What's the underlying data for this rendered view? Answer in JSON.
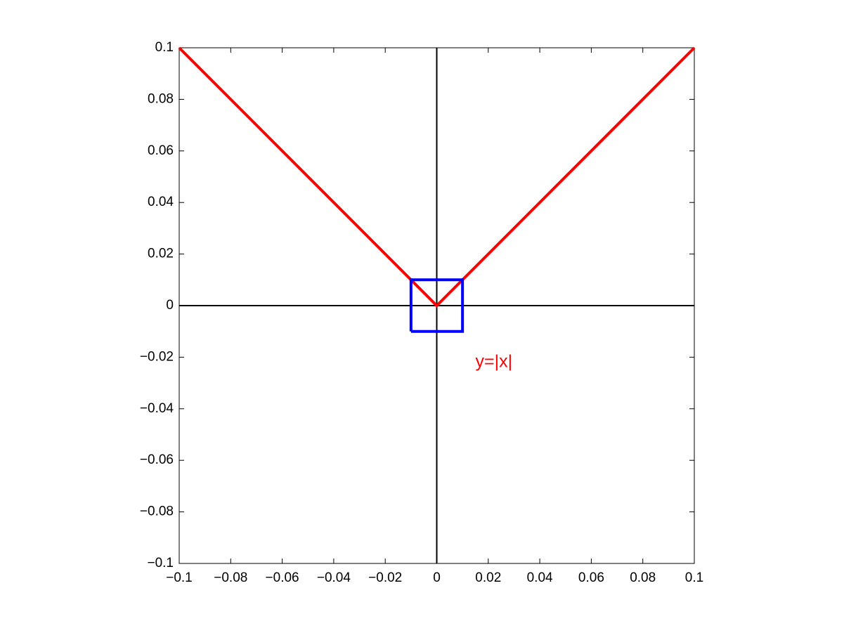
{
  "chart_data": {
    "type": "line",
    "series": [
      {
        "color": "#ff0000",
        "x": [
          -0.1,
          0,
          0.1
        ],
        "values": [
          0.1,
          0,
          0.1
        ]
      },
      {
        "color": "#0000ff",
        "x": [
          -0.01,
          0.01,
          0.01,
          -0.01,
          -0.01
        ],
        "values": [
          -0.01,
          -0.01,
          0.01,
          0.01,
          -0.01
        ]
      }
    ],
    "xlim": [
      -0.1,
      0.1
    ],
    "ylim": [
      -0.1,
      0.1
    ],
    "xticks": [
      {
        "value": -0.1,
        "label": "−0.1"
      },
      {
        "value": -0.08,
        "label": "−0.08"
      },
      {
        "value": -0.06,
        "label": "−0.06"
      },
      {
        "value": -0.04,
        "label": "−0.04"
      },
      {
        "value": -0.02,
        "label": "−0.02"
      },
      0,
      0.02,
      0.04,
      0.06,
      0.08,
      0.1
    ],
    "yticks": [
      {
        "value": -0.1,
        "label": "−0.1"
      },
      {
        "value": -0.08,
        "label": "−0.08"
      },
      {
        "value": -0.06,
        "label": "−0.06"
      },
      {
        "value": -0.04,
        "label": "−0.04"
      },
      {
        "value": -0.02,
        "label": "−0.02"
      },
      0,
      0.02,
      0.04,
      0.06,
      0.08,
      0.1
    ],
    "zero_axes": true,
    "grid": false,
    "annotations": [
      {
        "text": "y=|x|",
        "x": 0.015,
        "y": -0.022,
        "color": "#ff0000"
      }
    ]
  }
}
